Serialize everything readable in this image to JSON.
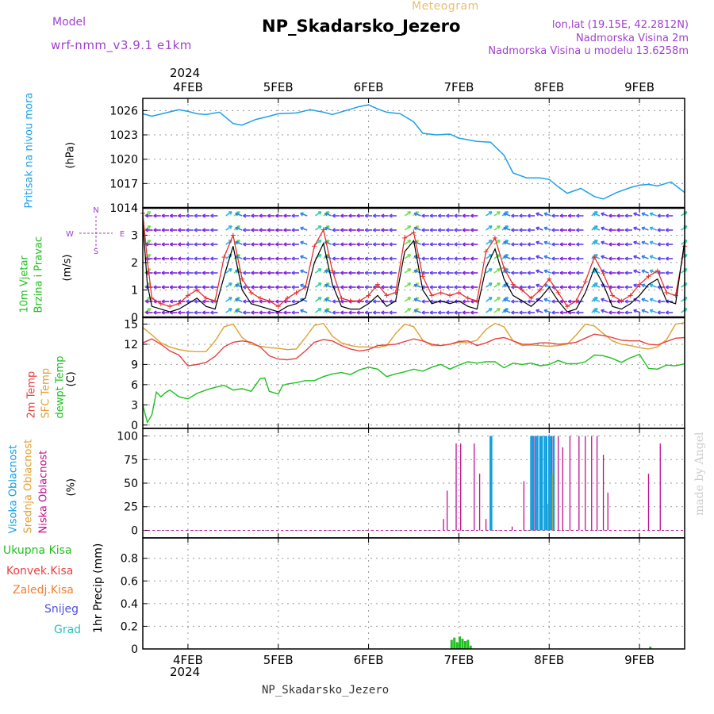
{
  "header": {
    "model_label": "Model",
    "model_name": "wrf-nmm_v3.9.1  e1km",
    "meteogram_label": "Meteogram",
    "station_title": "NP_Skadarsko_Jezero",
    "lonlat": "lon,lat (19.15E, 42.2812N)",
    "elevation": "Nadmorska Visina 2m",
    "model_elevation": "Nadmorska Visina u modelu 13.6258m",
    "footer_station": "NP_Skadarsko_Jezero",
    "watermark": "made by Angel",
    "year": "2024"
  },
  "colors": {
    "pressure": "#1fa0e8",
    "wind_speed_line": "#000000",
    "wind_gust": "#e53030",
    "temp_2m": "#e84040",
    "temp_sfc": "#e0a030",
    "dewpoint": "#20c020",
    "cloud_high": "#10a0e0",
    "cloud_mid": "#e0a030",
    "cloud_low": "#c01090",
    "precip_total": "#20c020"
  },
  "chart_data": [
    {
      "type": "line",
      "panel": "pressure",
      "ylabel": "Pritisak na nivou mora",
      "unit": "(hPa)",
      "x_ticks": [
        "4FEB",
        "5FEB",
        "6FEB",
        "7FEB",
        "8FEB",
        "9FEB"
      ],
      "y_ticks": [
        "1026",
        "1023",
        "1020",
        "1017",
        "1014"
      ],
      "ylim": [
        1014,
        1027.5
      ],
      "xlim_days": [
        3.5,
        9.5
      ],
      "series": [
        {
          "x": [
            3.5,
            3.6,
            3.75,
            3.9,
            4.0,
            4.1,
            4.2,
            4.35,
            4.5,
            4.6,
            4.75,
            4.9,
            5.0,
            5.2,
            5.35,
            5.5,
            5.6,
            5.75,
            5.9,
            6.0,
            6.1,
            6.2,
            6.35,
            6.5,
            6.6,
            6.75,
            6.9,
            7.0,
            7.2,
            7.35,
            7.5,
            7.6,
            7.75,
            7.9,
            8.0,
            8.1,
            8.2,
            8.35,
            8.5,
            8.6,
            8.75,
            8.9,
            9.0,
            9.1,
            9.2,
            9.35,
            9.5
          ],
          "y": [
            1025.6,
            1025.3,
            1025.7,
            1026.1,
            1025.9,
            1025.6,
            1025.5,
            1025.8,
            1024.4,
            1024.2,
            1024.9,
            1025.3,
            1025.6,
            1025.7,
            1026.1,
            1025.8,
            1025.5,
            1026.0,
            1026.5,
            1026.7,
            1026.2,
            1025.8,
            1025.6,
            1024.6,
            1023.2,
            1023.0,
            1023.1,
            1022.6,
            1022.2,
            1022.1,
            1020.5,
            1018.3,
            1017.7,
            1017.7,
            1017.5,
            1016.6,
            1015.8,
            1016.4,
            1015.4,
            1015.1,
            1015.9,
            1016.5,
            1016.8,
            1016.9,
            1016.7,
            1017.2,
            1015.9
          ]
        }
      ]
    },
    {
      "type": "line",
      "panel": "wind",
      "ylabel": "10m Vjetar Brzina i Pravac",
      "unit": "(m/s)",
      "y_ticks": [
        "4",
        "3",
        "2",
        "1",
        "0"
      ],
      "ylim": [
        0,
        4
      ],
      "compass": {
        "n": "N",
        "s": "S",
        "e": "E",
        "w": "W"
      },
      "series": [
        {
          "name": "wind_speed",
          "x": [
            3.5,
            3.55,
            3.6,
            3.7,
            3.8,
            3.9,
            4.0,
            4.1,
            4.2,
            4.3,
            4.4,
            4.5,
            4.6,
            4.7,
            4.8,
            4.9,
            5.0,
            5.1,
            5.2,
            5.3,
            5.4,
            5.5,
            5.6,
            5.7,
            5.8,
            5.9,
            6.0,
            6.1,
            6.2,
            6.3,
            6.4,
            6.5,
            6.6,
            6.7,
            6.8,
            6.9,
            7.0,
            7.1,
            7.2,
            7.3,
            7.4,
            7.5,
            7.6,
            7.7,
            7.8,
            7.9,
            8.0,
            8.1,
            8.2,
            8.3,
            8.4,
            8.5,
            8.6,
            8.7,
            8.8,
            8.9,
            9.0,
            9.1,
            9.2,
            9.3,
            9.4,
            9.5
          ],
          "y": [
            3.5,
            1.2,
            0.4,
            0.3,
            0.2,
            0.3,
            0.5,
            0.7,
            0.4,
            0.3,
            1.5,
            2.6,
            1.0,
            0.5,
            0.4,
            0.3,
            0.2,
            0.4,
            0.5,
            0.7,
            2.0,
            2.7,
            1.2,
            0.4,
            0.3,
            0.3,
            0.5,
            0.8,
            0.4,
            0.6,
            2.4,
            2.8,
            1.0,
            0.5,
            0.6,
            0.5,
            0.6,
            0.4,
            0.3,
            1.8,
            2.5,
            1.4,
            0.8,
            0.6,
            0.4,
            0.7,
            1.1,
            0.6,
            0.2,
            0.3,
            0.9,
            1.8,
            1.2,
            0.4,
            0.3,
            0.5,
            0.8,
            1.2,
            1.4,
            0.6,
            0.5,
            2.8
          ]
        },
        {
          "name": "wind_gust",
          "x": [
            3.5,
            3.55,
            3.6,
            3.7,
            3.8,
            3.9,
            4.0,
            4.1,
            4.2,
            4.3,
            4.4,
            4.5,
            4.6,
            4.7,
            4.8,
            4.9,
            5.0,
            5.1,
            5.2,
            5.3,
            5.4,
            5.5,
            5.6,
            5.7,
            5.8,
            5.9,
            6.0,
            6.1,
            6.2,
            6.3,
            6.4,
            6.5,
            6.6,
            6.7,
            6.8,
            6.9,
            7.0,
            7.1,
            7.2,
            7.3,
            7.4,
            7.5,
            7.6,
            7.7,
            7.8,
            7.9,
            8.0,
            8.1,
            8.2,
            8.3,
            8.4,
            8.5,
            8.6,
            8.7,
            8.8,
            8.9,
            9.0,
            9.1,
            9.2,
            9.3,
            9.4,
            9.5
          ],
          "y": [
            3.8,
            2.1,
            0.7,
            0.5,
            0.4,
            0.5,
            0.8,
            1.0,
            0.7,
            0.6,
            2.2,
            3.0,
            1.4,
            0.9,
            0.7,
            0.6,
            0.4,
            0.7,
            0.9,
            1.1,
            2.6,
            3.2,
            1.7,
            0.7,
            0.6,
            0.6,
            0.8,
            1.2,
            0.8,
            0.9,
            2.9,
            3.1,
            1.5,
            0.8,
            0.9,
            0.8,
            0.9,
            0.7,
            0.6,
            2.4,
            2.9,
            1.8,
            1.2,
            1.0,
            0.7,
            1.0,
            1.4,
            0.9,
            0.4,
            0.6,
            1.3,
            2.2,
            1.6,
            0.8,
            0.6,
            0.8,
            1.2,
            1.5,
            1.7,
            0.9,
            0.8,
            2.6
          ]
        }
      ]
    },
    {
      "type": "line",
      "panel": "temperature",
      "ylabels": [
        "2m Temp",
        "SFC Temp",
        "dewpt Temp"
      ],
      "unit": "(C)",
      "y_ticks": [
        "15",
        "12",
        "9",
        "6",
        "3",
        "0"
      ],
      "ylim": [
        -0.5,
        16
      ],
      "series": [
        {
          "name": "2m Temp",
          "x": [
            3.5,
            3.6,
            3.7,
            3.8,
            3.9,
            4.0,
            4.1,
            4.2,
            4.3,
            4.4,
            4.5,
            4.6,
            4.7,
            4.8,
            4.9,
            5.0,
            5.1,
            5.2,
            5.3,
            5.4,
            5.5,
            5.6,
            5.7,
            5.8,
            5.9,
            6.0,
            6.1,
            6.2,
            6.3,
            6.4,
            6.5,
            6.6,
            6.7,
            6.8,
            6.9,
            7.0,
            7.1,
            7.2,
            7.3,
            7.4,
            7.5,
            7.6,
            7.7,
            7.8,
            7.9,
            8.0,
            8.1,
            8.2,
            8.3,
            8.4,
            8.5,
            8.6,
            8.7,
            8.8,
            8.9,
            9.0,
            9.1,
            9.2,
            9.3,
            9.4,
            9.5
          ],
          "y": [
            12.2,
            12.8,
            12.0,
            11.0,
            10.4,
            8.8,
            9.0,
            9.3,
            10.2,
            11.6,
            12.3,
            12.5,
            12.3,
            11.6,
            10.3,
            9.8,
            9.7,
            9.9,
            11.0,
            12.3,
            12.7,
            12.5,
            11.8,
            11.3,
            11.0,
            11.2,
            11.8,
            11.9,
            12.0,
            12.4,
            12.8,
            12.5,
            12.0,
            11.8,
            12.0,
            12.4,
            12.5,
            11.8,
            12.2,
            12.8,
            13.0,
            12.5,
            12.0,
            12.0,
            12.2,
            12.2,
            12.0,
            12.1,
            12.3,
            12.9,
            13.5,
            13.3,
            13.0,
            12.6,
            12.5,
            12.5,
            12.0,
            11.9,
            12.4,
            12.9,
            13.0
          ]
        },
        {
          "name": "SFC Temp",
          "x": [
            3.5,
            3.6,
            3.7,
            3.8,
            3.9,
            4.0,
            4.1,
            4.2,
            4.3,
            4.4,
            4.5,
            4.6,
            4.7,
            4.8,
            4.9,
            5.0,
            5.1,
            5.2,
            5.3,
            5.4,
            5.5,
            5.6,
            5.7,
            5.8,
            5.9,
            6.0,
            6.1,
            6.2,
            6.3,
            6.4,
            6.5,
            6.6,
            6.7,
            6.8,
            6.9,
            7.0,
            7.1,
            7.2,
            7.3,
            7.4,
            7.5,
            7.6,
            7.7,
            7.8,
            7.9,
            8.0,
            8.1,
            8.2,
            8.3,
            8.4,
            8.5,
            8.6,
            8.7,
            8.8,
            8.9,
            9.0,
            9.1,
            9.2,
            9.3,
            9.4,
            9.5
          ],
          "y": [
            14.5,
            13.4,
            12.2,
            11.6,
            11.2,
            11.0,
            10.9,
            10.9,
            12.5,
            14.6,
            15.0,
            13.0,
            12.0,
            11.7,
            11.5,
            11.4,
            11.2,
            11.3,
            13.0,
            14.8,
            15.1,
            13.2,
            12.2,
            11.8,
            11.6,
            11.6,
            11.5,
            11.8,
            13.6,
            15.0,
            14.6,
            12.6,
            11.8,
            11.8,
            12.0,
            12.3,
            12.2,
            12.6,
            14.2,
            15.1,
            14.6,
            12.5,
            11.8,
            11.9,
            11.8,
            11.7,
            11.8,
            12.0,
            13.4,
            15.0,
            14.7,
            13.6,
            12.5,
            12.0,
            11.8,
            11.5,
            11.3,
            11.6,
            12.7,
            15.0,
            15.2
          ]
        },
        {
          "name": "dewpt Temp",
          "x": [
            3.5,
            3.55,
            3.6,
            3.65,
            3.7,
            3.75,
            3.8,
            3.9,
            4.0,
            4.1,
            4.2,
            4.3,
            4.4,
            4.5,
            4.6,
            4.7,
            4.8,
            4.85,
            4.9,
            5.0,
            5.05,
            5.1,
            5.2,
            5.3,
            5.4,
            5.5,
            5.6,
            5.7,
            5.8,
            5.9,
            6.0,
            6.1,
            6.2,
            6.3,
            6.4,
            6.5,
            6.6,
            6.7,
            6.8,
            6.9,
            7.0,
            7.1,
            7.2,
            7.3,
            7.4,
            7.5,
            7.6,
            7.7,
            7.8,
            7.9,
            8.0,
            8.1,
            8.2,
            8.3,
            8.4,
            8.5,
            8.6,
            8.7,
            8.8,
            8.9,
            9.0,
            9.1,
            9.2,
            9.3,
            9.4,
            9.5
          ],
          "y": [
            3.0,
            0.4,
            1.5,
            4.9,
            4.2,
            4.8,
            5.2,
            4.2,
            3.9,
            4.7,
            5.2,
            5.6,
            5.9,
            5.2,
            5.4,
            5.0,
            6.9,
            7.0,
            5.0,
            4.6,
            5.9,
            6.1,
            6.3,
            6.6,
            6.6,
            7.2,
            7.6,
            7.8,
            7.5,
            8.2,
            8.6,
            8.3,
            7.2,
            7.6,
            7.9,
            8.3,
            8.0,
            8.6,
            9.0,
            8.3,
            8.9,
            9.4,
            9.2,
            9.4,
            9.4,
            8.5,
            9.2,
            9.0,
            9.2,
            8.8,
            9.0,
            9.6,
            9.1,
            9.1,
            9.4,
            10.4,
            10.3,
            9.9,
            9.3,
            10.0,
            10.5,
            8.4,
            8.3,
            8.9,
            8.8,
            9.1
          ]
        }
      ]
    },
    {
      "type": "bar",
      "panel": "clouds",
      "ylabels": [
        "Visoka Oblacnost",
        "Srednja Oblacnost",
        "Niska Oblacnost"
      ],
      "unit": "(%)",
      "y_ticks": [
        "100",
        "75",
        "50",
        "25",
        "0"
      ],
      "ylim": [
        -8,
        108
      ],
      "series": [
        {
          "name": "Niska Oblacnost",
          "x": [
            6.83,
            6.87,
            6.97,
            7.02,
            7.17,
            7.23,
            7.3,
            7.59,
            7.72,
            7.83,
            7.9,
            7.97,
            8.03,
            8.1,
            8.15,
            8.23,
            8.33,
            8.4,
            8.47,
            8.53,
            8.6,
            8.65,
            9.1,
            9.23
          ],
          "values": [
            12,
            42,
            92,
            92,
            92,
            60,
            12,
            4,
            52,
            100,
            100,
            100,
            100,
            100,
            88,
            100,
            100,
            100,
            100,
            100,
            80,
            40,
            60,
            92
          ]
        },
        {
          "name": "Srednja Oblacnost",
          "x": [
            7.8,
            7.85,
            7.92,
            7.98,
            8.04
          ],
          "values": [
            30,
            25,
            35,
            28,
            60
          ]
        },
        {
          "name": "Visoka Oblacnost",
          "x": [
            7.35,
            7.36,
            7.8,
            7.82,
            7.85,
            7.87,
            7.9,
            7.92,
            7.95,
            7.97,
            8.0,
            8.02,
            8.05
          ],
          "values": [
            100,
            100,
            100,
            100,
            100,
            100,
            100,
            100,
            100,
            100,
            100,
            100,
            100
          ]
        }
      ]
    },
    {
      "type": "bar",
      "panel": "precipitation",
      "ylabel": "1hr Precip",
      "unit": "(mm)",
      "legend": [
        "Ukupna Kisa",
        "Konvek.Kisa",
        "Zaledj.Kisa",
        "Snijeg",
        "Grad"
      ],
      "y_ticks": [
        "0.8",
        "0.6",
        "0.4",
        "0.2",
        "0"
      ],
      "ylim": [
        0,
        0.98
      ],
      "series": [
        {
          "name": "Ukupna Kisa",
          "x": [
            6.92,
            6.95,
            6.98,
            7.01,
            7.04,
            7.07,
            7.1,
            7.13,
            9.12
          ],
          "values": [
            0.08,
            0.1,
            0.06,
            0.11,
            0.09,
            0.07,
            0.08,
            0.03,
            0.02
          ]
        }
      ]
    }
  ]
}
